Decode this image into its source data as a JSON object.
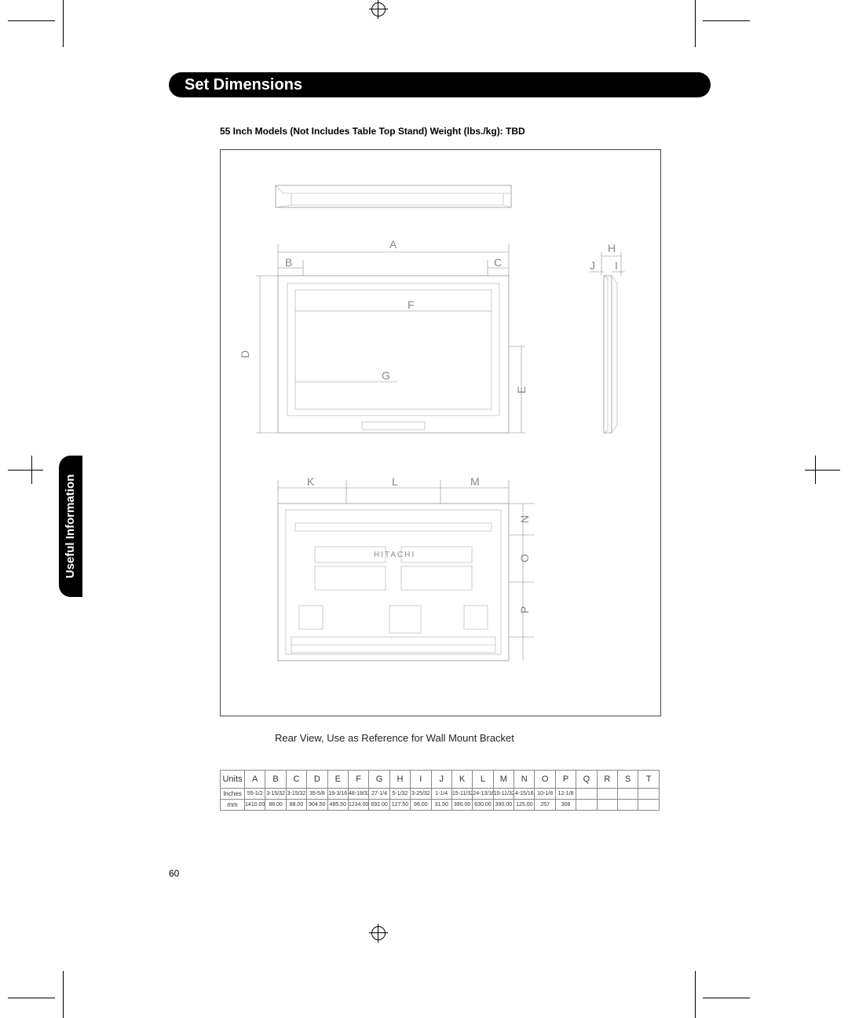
{
  "sideTab": "Useful Information",
  "title": "Set Dimensions",
  "subtitle": "55 Inch Models (Not Includes Table Top Stand) Weight (lbs./kg): TBD",
  "rearCaption": "Rear View, Use as Reference for Wall Mount Bracket",
  "pageNumber": "60",
  "dimLetters": {
    "A": "A",
    "B": "B",
    "C": "C",
    "D": "D",
    "E": "E",
    "F": "F",
    "G": "G",
    "H": "H",
    "I": "I",
    "J": "J",
    "K": "K",
    "L": "L",
    "M": "M",
    "N": "N",
    "O": "O",
    "P": "P"
  },
  "table": {
    "columns": [
      "Units",
      "A",
      "B",
      "C",
      "D",
      "E",
      "F",
      "G",
      "H",
      "I",
      "J",
      "K",
      "L",
      "M",
      "N",
      "O",
      "P",
      "Q",
      "R",
      "S",
      "T"
    ],
    "rows": [
      [
        "Inches",
        "55-1/2",
        "3-15/32",
        "3-15/32",
        "35-5/8",
        "19-3/16",
        "48-19/32",
        "27-1/4",
        "5-1/32",
        "3-25/32",
        "1-1/4",
        "15-11/32",
        "24-13/16",
        "15-11/32",
        "4-15/16",
        "10-1/8",
        "12-1/8",
        "",
        "",
        "",
        ""
      ],
      [
        "mm",
        "1410.00",
        "88.00",
        "88.00",
        "904.50",
        "485.50",
        "1234.00",
        "692.00",
        "127.50",
        "96.00",
        "31.50",
        "390.00",
        "630.00",
        "390.00",
        "125.00",
        "257",
        "308",
        "",
        "",
        "",
        ""
      ]
    ]
  }
}
